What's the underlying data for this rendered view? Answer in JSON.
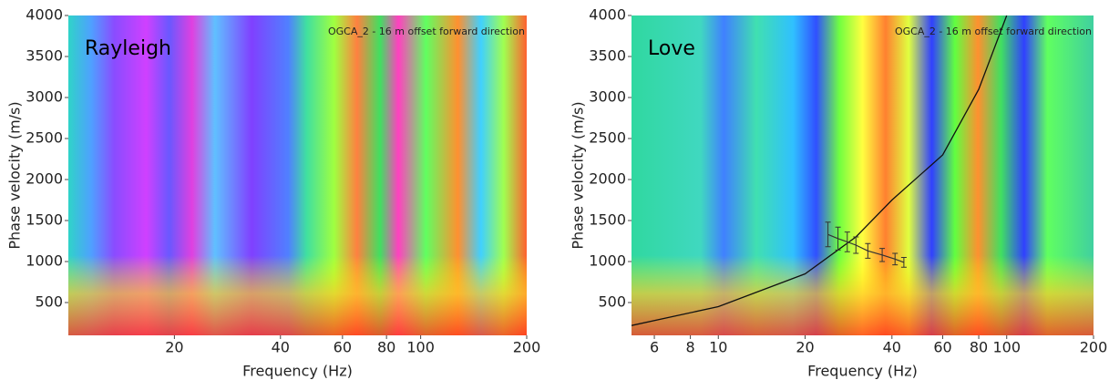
{
  "chart_data": [
    {
      "type": "dispersion",
      "annotation": "Rayleigh",
      "note": "OGCA_2 - 16 m offset forward direction",
      "x_label": "Frequency (Hz)",
      "y_label": "Phase velocity (m/s)",
      "xscale": "log",
      "xlim": [
        10,
        200
      ],
      "xticks": [
        20,
        40,
        60,
        80,
        100,
        200
      ],
      "ylim": [
        100,
        4000
      ],
      "yticks": [
        500,
        1000,
        1500,
        2000,
        2500,
        3000,
        3500,
        4000
      ]
    },
    {
      "type": "dispersion",
      "annotation": "Love",
      "note": "OGCA_2 - 16 m offset forward direction",
      "x_label": "Frequency (Hz)",
      "y_label": "Phase velocity (m/s)",
      "xscale": "log",
      "xlim": [
        5,
        200
      ],
      "xticks": [
        6,
        8,
        10,
        20,
        40,
        60,
        80,
        100,
        200
      ],
      "ylim": [
        100,
        4000
      ],
      "yticks": [
        500,
        1000,
        1500,
        2000,
        2500,
        3000,
        3500,
        4000
      ],
      "curve": {
        "color": "#111111",
        "x": [
          5,
          10,
          20,
          30,
          40,
          60,
          80,
          100
        ],
        "y": [
          220,
          450,
          850,
          1300,
          1750,
          2300,
          3100,
          4000
        ]
      },
      "picks": {
        "color": "#333333",
        "x": [
          24,
          26,
          28,
          30,
          33,
          37,
          41,
          44
        ],
        "y": [
          1330,
          1280,
          1240,
          1200,
          1130,
          1080,
          1030,
          990
        ],
        "err": [
          150,
          140,
          120,
          100,
          90,
          80,
          70,
          60
        ]
      }
    }
  ]
}
